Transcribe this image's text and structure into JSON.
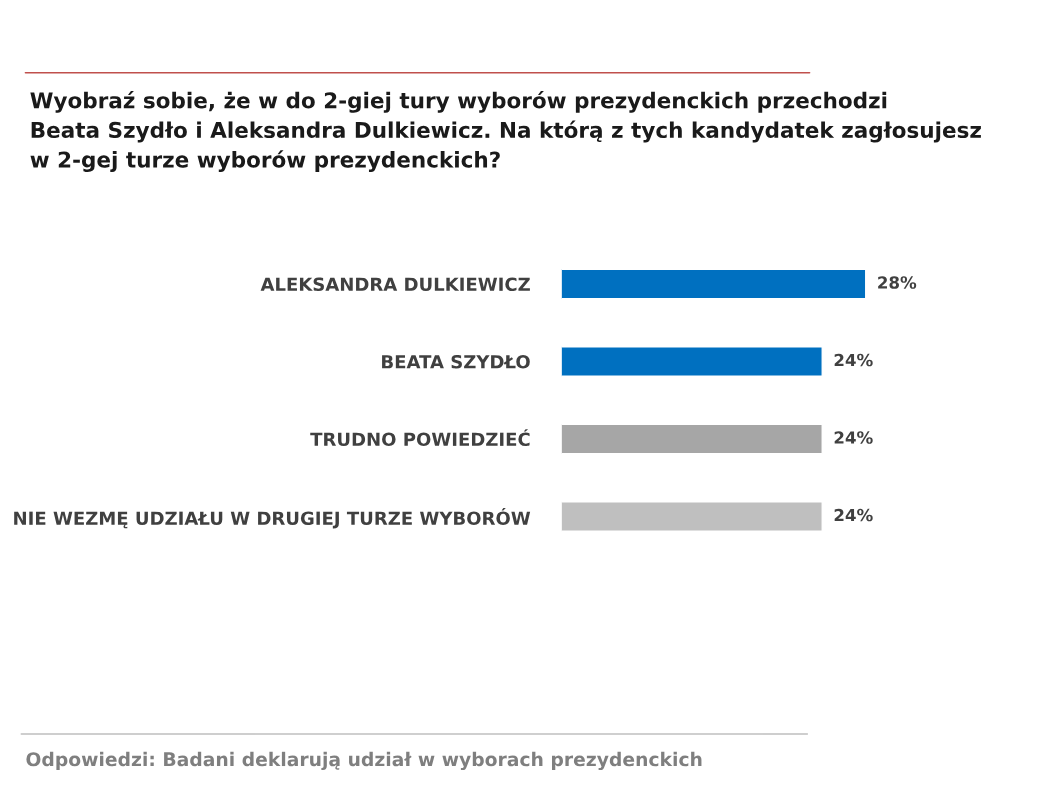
{
  "chart_data": {
    "type": "bar",
    "orientation": "horizontal",
    "title": "Wyobraź sobie, że w do 2-giej tury wyborów prezydenckich przechodzi\nBeata Szydło i Aleksandra Dulkiewicz. Na którą z tych kandydatek zagłosujesz\nw 2-gej turze wyborów prezydenckich?",
    "categories": [
      "ALEKSANDRA DULKIEWICZ",
      "BEATA SZYDŁO",
      "TRUDNO POWIEDZIEĆ",
      "NIE WEZMĘ UDZIAŁU W DRUGIEJ TURZE WYBORÓW"
    ],
    "values": [
      28,
      24,
      24,
      24
    ],
    "value_labels": [
      "28%",
      "24%",
      "24%",
      "24%"
    ],
    "colors": [
      "#0070c0",
      "#0070c0",
      "#a6a6a6",
      "#bfbfbf"
    ],
    "annotations": [
      "Odpowiedzi: Badani deklarują udział w wyborach prezydenckich"
    ]
  }
}
